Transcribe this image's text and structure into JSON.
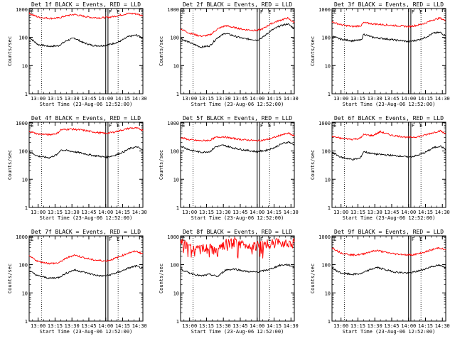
{
  "figure": {
    "ylabel": "Counts/sec",
    "xlabel": "Start Time (23-Aug-06 12:52:00)",
    "marker_left": "F",
    "marker_right": "E",
    "colors": {
      "events": "#000000",
      "lld": "#ff0000"
    }
  },
  "chart_data": [
    {
      "type": "line",
      "title": "Det 1f BLACK = Events, RED = LLD",
      "xlabel": "Start Time (23-Aug-06 12:52:00)",
      "ylabel": "Counts/sec",
      "x_ticks": [
        "13:00",
        "13:15",
        "13:30",
        "13:45",
        "14:00",
        "14:15",
        "14:30"
      ],
      "y_ticks": [
        "1",
        "10",
        "100",
        "1000"
      ],
      "ylim": [
        1,
        1000
      ],
      "y_scale": "log",
      "series": [
        {
          "name": "Events",
          "color": "#000000",
          "x": [
            "12:52",
            "13:00",
            "13:10",
            "13:18",
            "13:25",
            "13:32",
            "13:40",
            "13:48",
            "13:55",
            "14:00",
            "14:05",
            "14:12",
            "14:20",
            "14:27",
            "14:32"
          ],
          "values": [
            100,
            55,
            48,
            50,
            75,
            95,
            65,
            52,
            50,
            52,
            58,
            70,
            105,
            120,
            100
          ]
        },
        {
          "name": "LLD",
          "color": "#ff0000",
          "x": [
            "12:52",
            "13:00",
            "13:10",
            "13:18",
            "13:25",
            "13:32",
            "13:40",
            "13:48",
            "13:55",
            "14:00",
            "14:05",
            "14:12",
            "14:20",
            "14:27",
            "14:32"
          ],
          "values": [
            700,
            520,
            470,
            480,
            580,
            650,
            560,
            500,
            490,
            500,
            530,
            600,
            700,
            680,
            600
          ]
        }
      ]
    },
    {
      "type": "line",
      "title": "Det 2f BLACK = Events, RED = LLD",
      "xlabel": "Start Time (23-Aug-06 12:52:00)",
      "ylabel": "Counts/sec",
      "x_ticks": [
        "13:00",
        "13:15",
        "13:30",
        "13:45",
        "14:00",
        "14:15",
        "14:30"
      ],
      "y_ticks": [
        "1",
        "10",
        "100",
        "1000"
      ],
      "ylim": [
        1,
        1000
      ],
      "y_scale": "log",
      "series": [
        {
          "name": "Events",
          "color": "#000000",
          "x": [
            "12:52",
            "13:00",
            "13:10",
            "13:18",
            "13:25",
            "13:32",
            "13:40",
            "13:48",
            "13:55",
            "14:00",
            "14:05",
            "14:12",
            "14:20",
            "14:27",
            "14:32"
          ],
          "values": [
            90,
            65,
            45,
            50,
            100,
            140,
            110,
            90,
            85,
            80,
            100,
            170,
            250,
            300,
            220
          ]
        },
        {
          "name": "LLD",
          "color": "#ff0000",
          "x": [
            "12:52",
            "13:00",
            "13:10",
            "13:18",
            "13:25",
            "13:32",
            "13:40",
            "13:48",
            "13:55",
            "14:00",
            "14:05",
            "14:12",
            "14:20",
            "14:27",
            "14:32"
          ],
          "values": [
            200,
            140,
            110,
            120,
            200,
            260,
            220,
            190,
            180,
            175,
            200,
            300,
            400,
            480,
            350
          ]
        }
      ]
    },
    {
      "type": "line",
      "title": "Det 3f BLACK = Events, RED = LLD",
      "xlabel": "Start Time (23-Aug-06 12:52:00)",
      "ylabel": "Counts/sec",
      "x_ticks": [
        "13:00",
        "13:15",
        "13:30",
        "13:45",
        "14:00",
        "14:15",
        "14:30"
      ],
      "y_ticks": [
        "1",
        "10",
        "100",
        "1000"
      ],
      "ylim": [
        1,
        1000
      ],
      "y_scale": "log",
      "series": [
        {
          "name": "Events",
          "color": "#000000",
          "x": [
            "12:52",
            "13:00",
            "13:10",
            "13:18",
            "13:20",
            "13:28",
            "13:38",
            "13:48",
            "13:55",
            "14:00",
            "14:08",
            "14:15",
            "14:22",
            "14:28",
            "14:32"
          ],
          "values": [
            110,
            85,
            75,
            80,
            130,
            100,
            90,
            80,
            75,
            70,
            80,
            100,
            140,
            150,
            120
          ]
        },
        {
          "name": "LLD",
          "color": "#ff0000",
          "x": [
            "12:52",
            "13:00",
            "13:10",
            "13:18",
            "13:20",
            "13:28",
            "13:38",
            "13:48",
            "13:55",
            "14:00",
            "14:08",
            "14:15",
            "14:22",
            "14:28",
            "14:32"
          ],
          "values": [
            350,
            280,
            240,
            260,
            330,
            300,
            280,
            260,
            250,
            240,
            270,
            320,
            420,
            480,
            400
          ]
        }
      ]
    },
    {
      "type": "line",
      "title": "Det 4f BLACK = Events, RED = LLD",
      "xlabel": "Start Time (23-Aug-06 12:52:00)",
      "ylabel": "Counts/sec",
      "x_ticks": [
        "13:00",
        "13:15",
        "13:30",
        "13:45",
        "14:00",
        "14:15",
        "14:30"
      ],
      "y_ticks": [
        "1",
        "10",
        "100",
        "1000"
      ],
      "ylim": [
        1,
        1000
      ],
      "y_scale": "log",
      "series": [
        {
          "name": "Events",
          "color": "#000000",
          "x": [
            "12:52",
            "13:00",
            "13:10",
            "13:17",
            "13:20",
            "13:28",
            "13:38",
            "13:48",
            "13:55",
            "14:00",
            "14:08",
            "14:15",
            "14:22",
            "14:28",
            "14:32"
          ],
          "values": [
            95,
            65,
            58,
            75,
            110,
            100,
            85,
            70,
            65,
            60,
            70,
            90,
            125,
            140,
            110
          ]
        },
        {
          "name": "LLD",
          "color": "#ff0000",
          "x": [
            "12:52",
            "13:00",
            "13:10",
            "13:17",
            "13:20",
            "13:28",
            "13:38",
            "13:48",
            "13:55",
            "14:00",
            "14:08",
            "14:15",
            "14:22",
            "14:28",
            "14:32"
          ],
          "values": [
            500,
            400,
            380,
            420,
            560,
            600,
            560,
            480,
            440,
            420,
            470,
            560,
            650,
            640,
            560
          ]
        }
      ]
    },
    {
      "type": "line",
      "title": "Det 5f BLACK = Events, RED = LLD",
      "xlabel": "Start Time (23-Aug-06 12:52:00)",
      "ylabel": "Counts/sec",
      "x_ticks": [
        "13:00",
        "13:15",
        "13:30",
        "13:45",
        "14:00",
        "14:15",
        "14:30"
      ],
      "y_ticks": [
        "1",
        "10",
        "100",
        "1000"
      ],
      "ylim": [
        1,
        1000
      ],
      "y_scale": "log",
      "series": [
        {
          "name": "Events",
          "color": "#000000",
          "x": [
            "12:52",
            "13:00",
            "13:10",
            "13:18",
            "13:23",
            "13:30",
            "13:38",
            "13:48",
            "13:55",
            "14:00",
            "14:08",
            "14:15",
            "14:22",
            "14:28",
            "14:32"
          ],
          "values": [
            150,
            110,
            90,
            95,
            140,
            160,
            130,
            110,
            100,
            95,
            105,
            130,
            180,
            210,
            170
          ]
        },
        {
          "name": "LLD",
          "color": "#ff0000",
          "x": [
            "12:52",
            "13:00",
            "13:10",
            "13:18",
            "13:23",
            "13:30",
            "13:38",
            "13:48",
            "13:55",
            "14:00",
            "14:08",
            "14:15",
            "14:22",
            "14:28",
            "14:32"
          ],
          "values": [
            300,
            250,
            230,
            240,
            300,
            320,
            280,
            250,
            240,
            230,
            250,
            300,
            380,
            420,
            350
          ]
        }
      ]
    },
    {
      "type": "line",
      "title": "Det 6f BLACK = Events, RED = LLD",
      "xlabel": "Start Time (23-Aug-06 12:52:00)",
      "ylabel": "Counts/sec",
      "x_ticks": [
        "13:00",
        "13:15",
        "13:30",
        "13:45",
        "14:00",
        "14:15",
        "14:30"
      ],
      "y_ticks": [
        "1",
        "10",
        "100",
        "1000"
      ],
      "ylim": [
        1,
        1000
      ],
      "y_scale": "log",
      "series": [
        {
          "name": "Events",
          "color": "#000000",
          "x": [
            "12:52",
            "13:00",
            "13:10",
            "13:17",
            "13:20",
            "13:28",
            "13:35",
            "13:45",
            "13:55",
            "14:00",
            "14:08",
            "14:15",
            "14:22",
            "14:28",
            "14:32"
          ],
          "values": [
            90,
            60,
            50,
            55,
            95,
            80,
            75,
            70,
            65,
            60,
            70,
            90,
            130,
            150,
            120
          ]
        },
        {
          "name": "LLD",
          "color": "#ff0000",
          "x": [
            "12:52",
            "13:00",
            "13:10",
            "13:17",
            "13:20",
            "13:28",
            "13:35",
            "13:45",
            "13:55",
            "14:00",
            "14:08",
            "14:15",
            "14:22",
            "14:28",
            "14:32"
          ],
          "values": [
            330,
            280,
            260,
            280,
            380,
            350,
            480,
            360,
            320,
            300,
            320,
            370,
            450,
            520,
            420
          ]
        }
      ]
    },
    {
      "type": "line",
      "title": "Det 7f BLACK = Events, RED = LLD",
      "xlabel": "Start Time (23-Aug-06 12:52:00)",
      "ylabel": "Counts/sec",
      "x_ticks": [
        "13:00",
        "13:15",
        "13:30",
        "13:45",
        "14:00",
        "14:15",
        "14:30"
      ],
      "y_ticks": [
        "1",
        "10",
        "100",
        "1000"
      ],
      "ylim": [
        1,
        1000
      ],
      "y_scale": "log",
      "series": [
        {
          "name": "Events",
          "color": "#000000",
          "x": [
            "12:52",
            "13:00",
            "13:10",
            "13:18",
            "13:25",
            "13:32",
            "13:40",
            "13:48",
            "13:55",
            "14:00",
            "14:05",
            "14:12",
            "14:20",
            "14:27",
            "14:32"
          ],
          "values": [
            60,
            40,
            33,
            35,
            50,
            65,
            55,
            45,
            40,
            40,
            45,
            55,
            75,
            90,
            75
          ]
        },
        {
          "name": "LLD",
          "color": "#ff0000",
          "x": [
            "12:52",
            "13:00",
            "13:10",
            "13:18",
            "13:25",
            "13:32",
            "13:40",
            "13:48",
            "13:55",
            "14:00",
            "14:05",
            "14:12",
            "14:20",
            "14:27",
            "14:32"
          ],
          "values": [
            200,
            130,
            110,
            115,
            170,
            220,
            180,
            150,
            140,
            135,
            150,
            190,
            260,
            300,
            250
          ]
        }
      ]
    },
    {
      "type": "line",
      "title": "Det 8f BLACK = Events, RED = LLD",
      "xlabel": "Start Time (23-Aug-06 12:52:00)",
      "ylabel": "Counts/sec",
      "x_ticks": [
        "13:00",
        "13:15",
        "13:30",
        "13:45",
        "14:00",
        "14:15",
        "14:30"
      ],
      "y_ticks": [
        "1",
        "10",
        "100",
        "1000"
      ],
      "ylim": [
        1,
        1000
      ],
      "y_scale": "log",
      "series": [
        {
          "name": "Events",
          "color": "#000000",
          "x": [
            "12:52",
            "13:00",
            "13:10",
            "13:18",
            "13:25",
            "13:32",
            "13:40",
            "13:48",
            "13:55",
            "14:00",
            "14:05",
            "14:12",
            "14:20",
            "14:27",
            "14:32"
          ],
          "values": [
            70,
            50,
            40,
            45,
            38,
            65,
            70,
            60,
            55,
            55,
            60,
            70,
            95,
            100,
            85
          ]
        },
        {
          "name": "LLD",
          "color": "#ff0000",
          "x": [
            "12:52",
            "13:00",
            "13:10",
            "13:18",
            "13:25",
            "13:32",
            "13:40",
            "13:48",
            "13:55",
            "14:00",
            "14:05",
            "14:12",
            "14:20",
            "14:27",
            "14:32"
          ],
          "values": [
            600,
            400,
            350,
            380,
            280,
            550,
            600,
            500,
            480,
            470,
            500,
            550,
            600,
            620,
            580
          ]
        }
      ]
    },
    {
      "type": "line",
      "title": "Det 9f BLACK = Events, RED = LLD",
      "xlabel": "Start Time (23-Aug-06 12:52:00)",
      "ylabel": "Counts/sec",
      "x_ticks": [
        "13:00",
        "13:15",
        "13:30",
        "13:45",
        "14:00",
        "14:15",
        "14:30"
      ],
      "y_ticks": [
        "1",
        "10",
        "100",
        "1000"
      ],
      "ylim": [
        1,
        1000
      ],
      "y_scale": "log",
      "series": [
        {
          "name": "Events",
          "color": "#000000",
          "x": [
            "12:52",
            "13:00",
            "13:10",
            "13:18",
            "13:25",
            "13:32",
            "13:40",
            "13:48",
            "13:55",
            "14:00",
            "14:05",
            "14:12",
            "14:20",
            "14:27",
            "14:32"
          ],
          "values": [
            75,
            50,
            45,
            48,
            65,
            80,
            65,
            55,
            52,
            50,
            55,
            65,
            85,
            95,
            80
          ]
        },
        {
          "name": "LLD",
          "color": "#ff0000",
          "x": [
            "12:52",
            "13:00",
            "13:10",
            "13:18",
            "13:25",
            "13:32",
            "13:40",
            "13:48",
            "13:55",
            "14:00",
            "14:05",
            "14:12",
            "14:20",
            "14:27",
            "14:32"
          ],
          "values": [
            400,
            260,
            220,
            230,
            280,
            320,
            270,
            240,
            230,
            220,
            230,
            260,
            330,
            400,
            340
          ]
        }
      ]
    }
  ]
}
